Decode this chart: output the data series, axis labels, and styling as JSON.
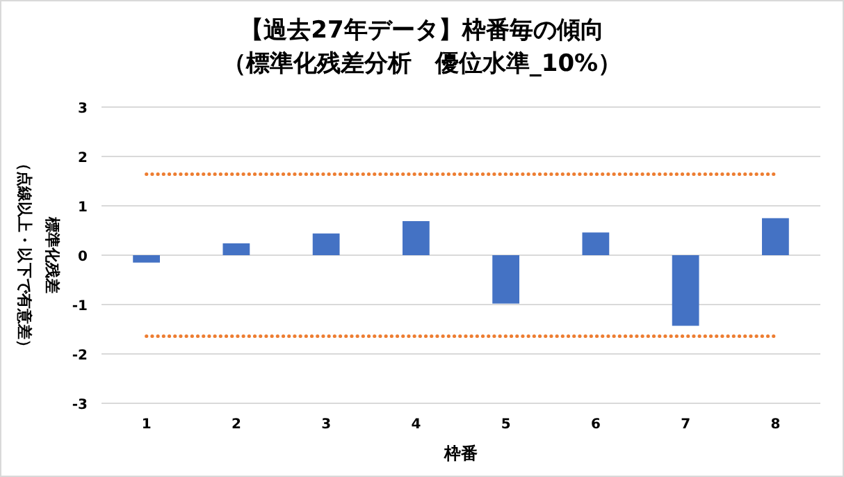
{
  "chart_data": {
    "type": "bar",
    "title": "【過去27年データ】枠番毎の傾向",
    "subtitle": "（標準化残差分析　優位水準_10%）",
    "xlabel": "枠番",
    "ylabel": "標準化残差",
    "annotations": [
      "（点線以上・以下で有意差）"
    ],
    "categories": [
      "1",
      "2",
      "3",
      "4",
      "5",
      "6",
      "7",
      "8"
    ],
    "values": [
      -0.15,
      0.24,
      0.44,
      0.69,
      -0.98,
      0.46,
      -1.43,
      0.75
    ],
    "color": "#4472c4",
    "ylim": [
      -3,
      3
    ],
    "yticks": [
      -3,
      -2,
      -1,
      0,
      1,
      2,
      3
    ],
    "grid": "y",
    "ref_lines": [
      {
        "axis": "y",
        "value": 1.64,
        "color": "#ed7d31",
        "line_style": "dotted"
      },
      {
        "axis": "y",
        "value": -1.64,
        "color": "#ed7d31",
        "line_style": "dotted"
      }
    ]
  }
}
